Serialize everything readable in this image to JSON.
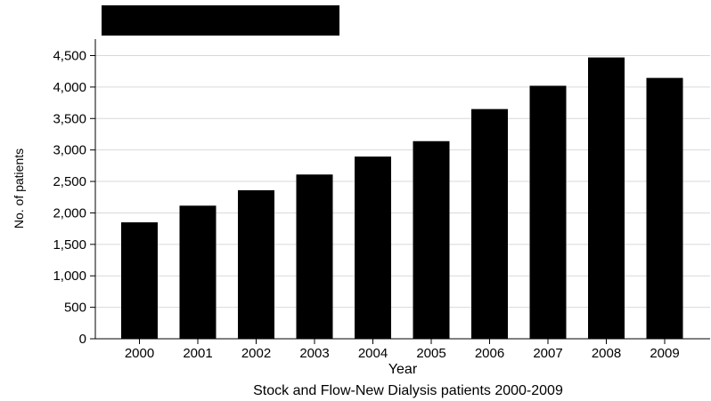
{
  "chart_data": {
    "type": "bar",
    "categories": [
      "2000",
      "2001",
      "2002",
      "2003",
      "2004",
      "2005",
      "2006",
      "2007",
      "2008",
      "2009"
    ],
    "values": [
      1850,
      2115,
      2360,
      2610,
      2895,
      3140,
      3650,
      4020,
      4470,
      4145
    ],
    "title": "",
    "subtitle": "Stock and Flow-New Dialysis patients 2000-2009",
    "xlabel": "Year",
    "ylabel": "No. of patients",
    "ylim": [
      0,
      4500
    ],
    "yticks": [
      0,
      500,
      1000,
      1500,
      2000,
      2500,
      3000,
      3500,
      4000,
      4500
    ],
    "ytick_labels": [
      "0",
      "500",
      "1,000",
      "1,500",
      "2,000",
      "2,500",
      "3,000",
      "3,500",
      "4,000",
      "4,500"
    ],
    "grid": true,
    "bar_color": "#000000",
    "grid_color": "#d9d9d9"
  }
}
